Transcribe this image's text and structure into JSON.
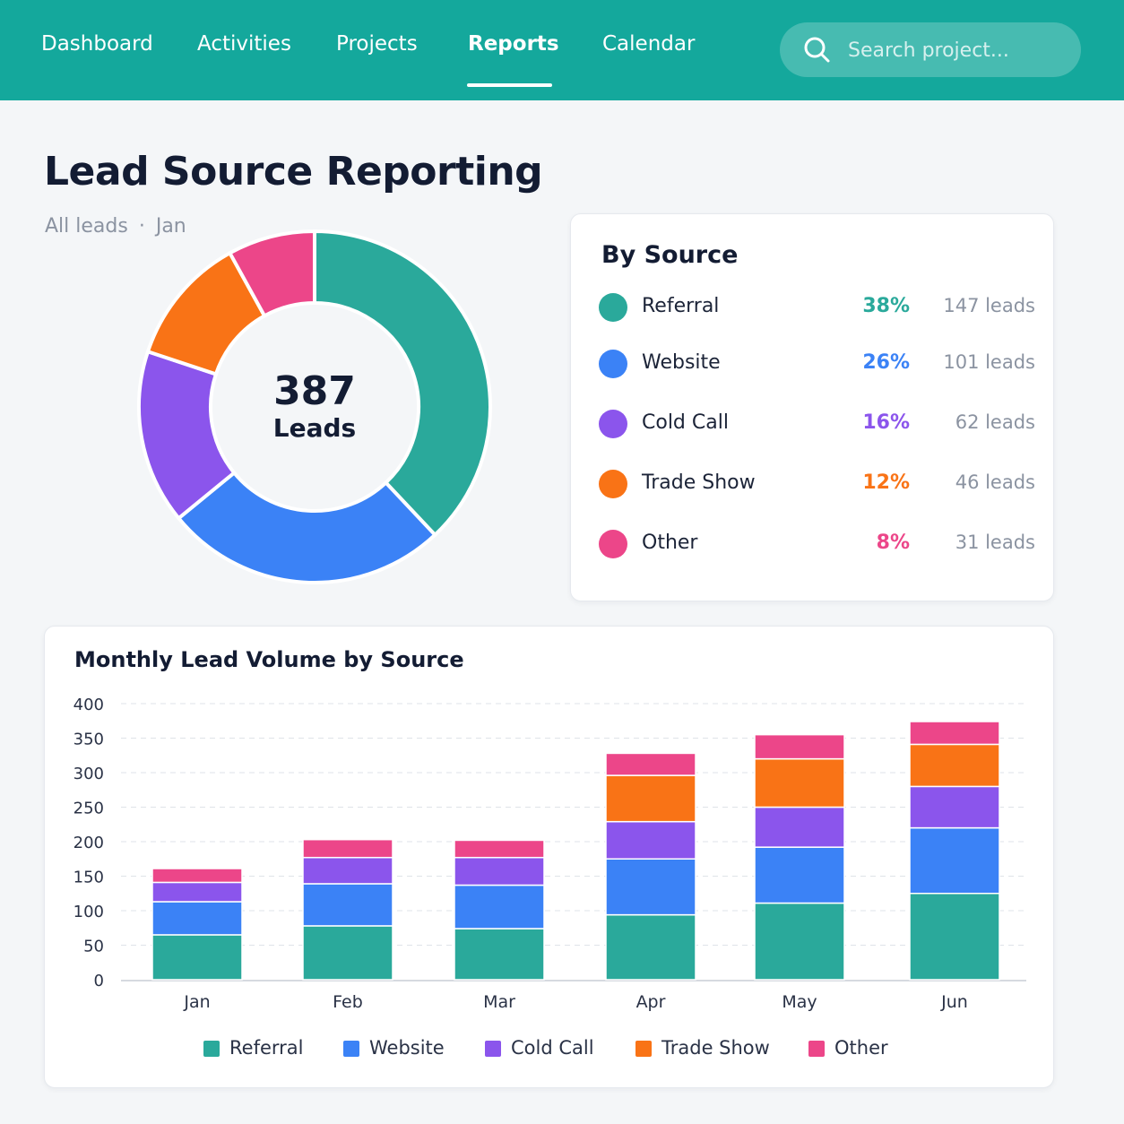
{
  "nav": {
    "items": [
      {
        "label": "Dashboard"
      },
      {
        "label": "Activities"
      },
      {
        "label": "Projects"
      },
      {
        "label": "Reports",
        "active": true
      },
      {
        "label": "Calendar"
      }
    ],
    "search_placeholder": "Search project..."
  },
  "page": {
    "title": "Lead Source Reporting",
    "filter_scope": "All leads",
    "filter_separator": "·",
    "filter_month": "Jan"
  },
  "colors": {
    "brand": "#14a89c",
    "Referral": "#2aa99b",
    "Website": "#3b82f6",
    "Cold Call": "#8b55ec",
    "Trade Show": "#f97316",
    "Other": "#ec4689"
  },
  "donut": {
    "total": "387",
    "unit": "Leads"
  },
  "by_source": {
    "title": "By Source",
    "rows": [
      {
        "name": "Referral",
        "pct": "38%",
        "count": "147 leads",
        "color": "#2aa99b"
      },
      {
        "name": "Website",
        "pct": "26%",
        "count": "101 leads",
        "color": "#3b82f6"
      },
      {
        "name": "Cold Call",
        "pct": "16%",
        "count": "62 leads",
        "color": "#8b55ec"
      },
      {
        "name": "Trade Show",
        "pct": "12%",
        "count": "46 leads",
        "color": "#f97316"
      },
      {
        "name": "Other",
        "pct": "8%",
        "count": "31 leads",
        "color": "#ec4689"
      }
    ]
  },
  "chart_data": [
    {
      "type": "pie",
      "categories": [
        "Referral",
        "Website",
        "Cold Call",
        "Trade Show",
        "Other"
      ],
      "values": [
        147,
        101,
        62,
        46,
        31
      ],
      "title": "",
      "donut": true
    },
    {
      "type": "bar",
      "stacked": true,
      "title": "Monthly Lead Volume by Source",
      "categories": [
        "Jan",
        "Feb",
        "Mar",
        "Apr",
        "May",
        "Jun"
      ],
      "series": [
        {
          "name": "Referral",
          "color": "#2aa99b",
          "values": [
            65,
            78,
            74,
            94,
            111,
            125
          ]
        },
        {
          "name": "Website",
          "color": "#3b82f6",
          "values": [
            48,
            61,
            63,
            81,
            81,
            95
          ]
        },
        {
          "name": "Cold Call",
          "color": "#8b55ec",
          "values": [
            28,
            38,
            40,
            54,
            58,
            60
          ]
        },
        {
          "name": "Trade Show",
          "color": "#f97316",
          "values": [
            0,
            0,
            0,
            67,
            70,
            61
          ]
        },
        {
          "name": "Other",
          "color": "#ec4689",
          "values": [
            20,
            26,
            25,
            32,
            35,
            33
          ]
        }
      ],
      "ylim": [
        0,
        400
      ],
      "yticks": [
        0,
        50,
        100,
        150,
        200,
        250,
        300,
        350,
        400
      ],
      "xlabel": "",
      "ylabel": "",
      "grid": true,
      "legend": "bottom"
    }
  ]
}
